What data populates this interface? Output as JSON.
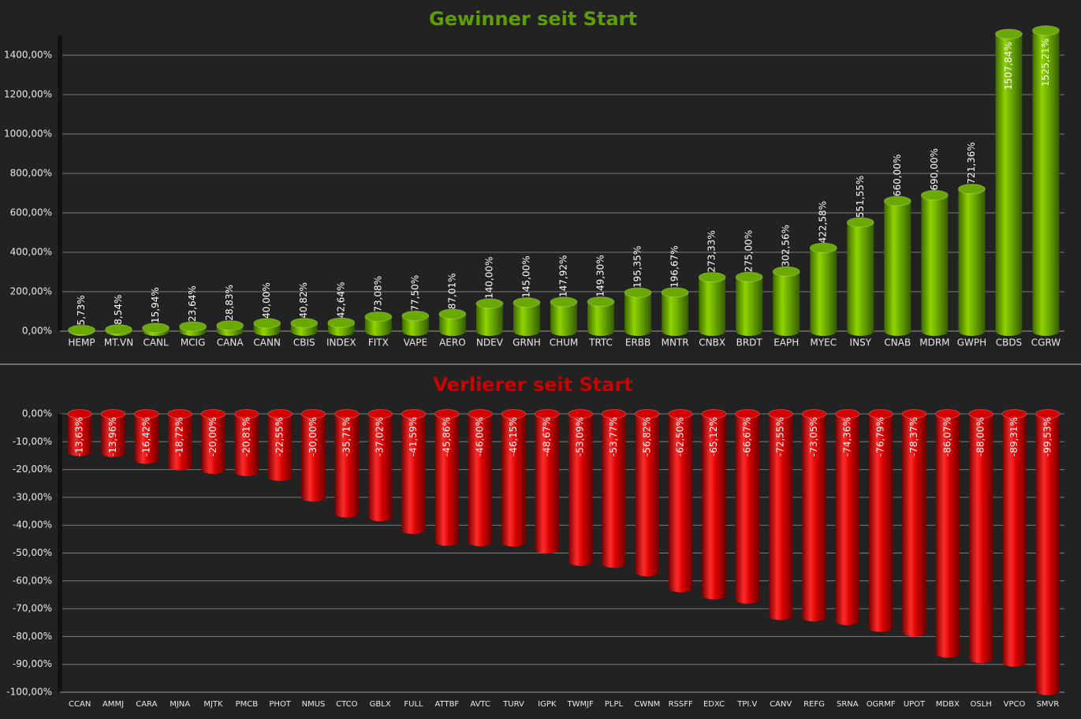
{
  "chart_data": [
    {
      "type": "bar",
      "title": "Gewinner seit Start",
      "color": "#6aaa00",
      "grid": true,
      "categories": [
        "HEMP",
        "MT.VN",
        "CANL",
        "MCIG",
        "CANA",
        "CANN",
        "CBIS",
        "INDEX",
        "FITX",
        "VAPE",
        "AERO",
        "NDEV",
        "GRNH",
        "CHUM",
        "TRTC",
        "ERBB",
        "MNTR",
        "CNBX",
        "BRDT",
        "EAPH",
        "MYEC",
        "INSY",
        "CNAB",
        "MDRM",
        "GWPH",
        "CBDS",
        "CGRW"
      ],
      "values": [
        5.73,
        8.54,
        15.94,
        23.64,
        28.83,
        40.0,
        40.82,
        42.64,
        73.08,
        77.5,
        87.01,
        140.0,
        145.0,
        147.92,
        149.3,
        195.35,
        196.67,
        273.33,
        275.0,
        302.56,
        422.58,
        551.55,
        660.0,
        690.0,
        721.36,
        1507.84,
        1525.21
      ],
      "value_labels": [
        "5,73%",
        "8,54%",
        "15,94%",
        "23,64%",
        "28,83%",
        "40,00%",
        "40,82%",
        "42,64%",
        "73,08%",
        "77,50%",
        "87,01%",
        "140,00%",
        "145,00%",
        "147,92%",
        "149,30%",
        "195,35%",
        "196,67%",
        "273,33%",
        "275,00%",
        "302,56%",
        "422,58%",
        "551,55%",
        "660,00%",
        "690,00%",
        "721,36%",
        "1507,84%",
        "1525,21%"
      ],
      "ylim": [
        0,
        1500
      ],
      "yticks": [
        {
          "value": 0,
          "label": "0,00%"
        },
        {
          "value": 200,
          "label": "200,00%"
        },
        {
          "value": 400,
          "label": "400,00%"
        },
        {
          "value": 600,
          "label": "600,00%"
        },
        {
          "value": 800,
          "label": "800,00%"
        },
        {
          "value": 1000,
          "label": "1000,00%"
        },
        {
          "value": 1200,
          "label": "1200,00%"
        },
        {
          "value": 1400,
          "label": "1400,00%"
        }
      ]
    },
    {
      "type": "bar",
      "title": "Verlierer seit Start",
      "color": "#d40000",
      "grid": true,
      "categories": [
        "CCAN",
        "AMMJ",
        "CARA",
        "MJNA",
        "MJTK",
        "PMCB",
        "PHOT",
        "NMUS",
        "CTCO",
        "GBLX",
        "FULL",
        "ATTBF",
        "AVTC",
        "TURV",
        "IGPK",
        "TWMJF",
        "PLPL",
        "CWNM",
        "RSSFF",
        "EDXC",
        "TPI.V",
        "CANV",
        "REFG",
        "SRNA",
        "OGRMF",
        "UPOT",
        "MDBX",
        "OSLH",
        "VPCO",
        "SMVR"
      ],
      "values": [
        -13.63,
        -13.96,
        -16.42,
        -18.72,
        -20.0,
        -20.81,
        -22.55,
        -30.0,
        -35.71,
        -37.02,
        -41.59,
        -45.86,
        -46.0,
        -46.15,
        -48.67,
        -53.09,
        -53.77,
        -56.82,
        -62.5,
        -65.12,
        -66.67,
        -72.55,
        -73.05,
        -74.36,
        -76.79,
        -78.37,
        -86.07,
        -88.0,
        -89.31,
        -99.53
      ],
      "value_labels": [
        "-13,63%",
        "-13,96%",
        "-16,42%",
        "-18,72%",
        "-20,00%",
        "-20,81%",
        "-22,55%",
        "-30,00%",
        "-35,71%",
        "-37,02%",
        "-41,59%",
        "-45,86%",
        "-46,00%",
        "-46,15%",
        "-48,67%",
        "-53,09%",
        "-53,77%",
        "-56,82%",
        "-62,50%",
        "-65,12%",
        "-66,67%",
        "-72,55%",
        "-73,05%",
        "-74,36%",
        "-76,79%",
        "-78,37%",
        "-86,07%",
        "-88,00%",
        "-89,31%",
        "-99,53%"
      ],
      "ylim": [
        -100,
        0
      ],
      "yticks": [
        {
          "value": 0,
          "label": "0,00%"
        },
        {
          "value": -10,
          "label": "-10,00%"
        },
        {
          "value": -20,
          "label": "-20,00%"
        },
        {
          "value": -30,
          "label": "-30,00%"
        },
        {
          "value": -40,
          "label": "-40,00%"
        },
        {
          "value": -50,
          "label": "-50,00%"
        },
        {
          "value": -60,
          "label": "-60,00%"
        },
        {
          "value": -70,
          "label": "-70,00%"
        },
        {
          "value": -80,
          "label": "-80,00%"
        },
        {
          "value": -90,
          "label": "-90,00%"
        },
        {
          "value": -100,
          "label": "-100,00%"
        }
      ]
    }
  ]
}
